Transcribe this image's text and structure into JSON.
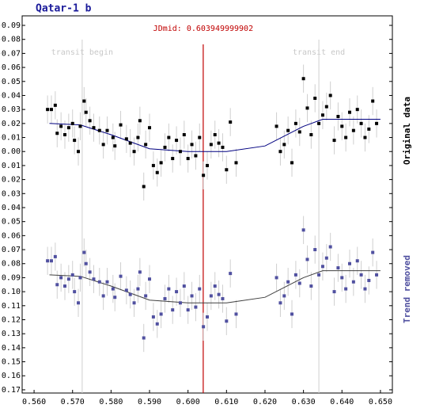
{
  "chart_data": {
    "type": "scatter",
    "title": "Qatar-1 b",
    "xlim": [
      0.5569,
      0.6531
    ],
    "ylim": [
      -0.0968,
      0.1723
    ],
    "y_inverted": true,
    "xticks": [
      {
        "value": 0.56,
        "label": "0.560"
      },
      {
        "value": 0.57,
        "label": "0.570"
      },
      {
        "value": 0.58,
        "label": "0.580"
      },
      {
        "value": 0.59,
        "label": "0.590"
      },
      {
        "value": 0.6,
        "label": "0.600"
      },
      {
        "value": 0.61,
        "label": "0.610"
      },
      {
        "value": 0.62,
        "label": "0.620"
      },
      {
        "value": 0.63,
        "label": "0.630"
      },
      {
        "value": 0.64,
        "label": "0.640"
      },
      {
        "value": 0.65,
        "label": "0.650"
      }
    ],
    "yticks": [
      -0.09,
      -0.08,
      -0.07,
      -0.06,
      -0.05,
      -0.04,
      -0.03,
      -0.02,
      -0.01,
      {
        "value": 0,
        "label": "0.00"
      },
      0.01,
      0.02,
      0.03,
      0.04,
      0.05,
      0.06,
      0.07,
      0.08,
      0.09,
      {
        "value": 0.1,
        "label": "0.10"
      },
      0.11,
      0.12,
      0.13,
      0.14,
      0.15,
      0.16,
      0.17
    ],
    "vlines": [
      {
        "value": 0.5725,
        "label": "transit begin",
        "color": "#d0d0d0"
      },
      {
        "value": 0.634,
        "label": "transit end",
        "color": "#d0d0d0"
      },
      {
        "value": 0.603949999902,
        "label": "JDmid: 0.603949999902",
        "color": "#c00000"
      }
    ],
    "x": [
      0.5635,
      0.5645,
      0.5655,
      0.566,
      0.567,
      0.568,
      0.569,
      0.57,
      0.5705,
      0.5715,
      0.572,
      0.573,
      0.5735,
      0.5745,
      0.5755,
      0.577,
      0.578,
      0.579,
      0.5805,
      0.581,
      0.5825,
      0.584,
      0.585,
      0.586,
      0.587,
      0.5875,
      0.5885,
      0.589,
      0.59,
      0.591,
      0.592,
      0.593,
      0.594,
      0.595,
      0.596,
      0.597,
      0.598,
      0.599,
      0.6,
      0.601,
      0.602,
      0.603,
      0.604,
      0.605,
      0.606,
      0.607,
      0.608,
      0.609,
      0.61,
      0.611,
      0.6125,
      0.623,
      0.624,
      0.625,
      0.626,
      0.627,
      0.628,
      0.629,
      0.63,
      0.631,
      0.632,
      0.633,
      0.634,
      0.635,
      0.636,
      0.637,
      0.638,
      0.639,
      0.64,
      0.641,
      0.642,
      0.643,
      0.644,
      0.645,
      0.646,
      0.647,
      0.648,
      0.649
    ],
    "series": [
      {
        "name": "Original data",
        "color": "#000000",
        "error": 0.01,
        "values": [
          -0.03,
          -0.03,
          -0.033,
          -0.013,
          -0.018,
          -0.012,
          -0.017,
          -0.02,
          -0.008,
          0,
          -0.018,
          -0.036,
          -0.028,
          -0.022,
          -0.017,
          -0.015,
          -0.005,
          -0.015,
          -0.01,
          -0.004,
          -0.019,
          -0.009,
          -0.006,
          0,
          -0.01,
          -0.022,
          0.025,
          -0.005,
          -0.017,
          0.01,
          0.015,
          0.008,
          -0.003,
          -0.01,
          0.005,
          -0.008,
          0,
          -0.012,
          0.005,
          -0.005,
          0.003,
          -0.01,
          0.017,
          0.01,
          -0.005,
          -0.012,
          -0.006,
          -0.003,
          0.013,
          -0.021,
          0.008,
          -0.018,
          0,
          -0.005,
          -0.015,
          0.008,
          -0.02,
          -0.014,
          -0.052,
          -0.031,
          -0.012,
          -0.038,
          -0.02,
          -0.026,
          -0.032,
          -0.04,
          -0.008,
          -0.025,
          -0.018,
          -0.01,
          -0.028,
          -0.015,
          -0.03,
          -0.02,
          -0.01,
          -0.016,
          -0.036,
          -0.02
        ]
      },
      {
        "name": "Trend removed",
        "color": "#5050a0",
        "error": 0.01,
        "values": [
          0.078,
          0.078,
          0.075,
          0.095,
          0.09,
          0.096,
          0.091,
          0.088,
          0.1,
          0.108,
          0.09,
          0.072,
          0.08,
          0.086,
          0.091,
          0.093,
          0.103,
          0.093,
          0.098,
          0.104,
          0.089,
          0.099,
          0.102,
          0.108,
          0.098,
          0.086,
          0.133,
          0.103,
          0.091,
          0.118,
          0.123,
          0.116,
          0.105,
          0.098,
          0.113,
          0.1,
          0.108,
          0.096,
          0.113,
          0.103,
          0.111,
          0.098,
          0.125,
          0.118,
          0.103,
          0.096,
          0.102,
          0.105,
          0.121,
          0.087,
          0.116,
          0.09,
          0.108,
          0.103,
          0.093,
          0.116,
          0.088,
          0.094,
          0.056,
          0.077,
          0.096,
          0.07,
          0.088,
          0.082,
          0.076,
          0.068,
          0.1,
          0.083,
          0.09,
          0.098,
          0.08,
          0.093,
          0.078,
          0.088,
          0.098,
          0.092,
          0.072,
          0.088
        ]
      }
    ],
    "models": [
      {
        "color": "#000080",
        "x": [
          0.564,
          0.572,
          0.58,
          0.59,
          0.6,
          0.61,
          0.62,
          0.63,
          0.635,
          0.65
        ],
        "values": [
          -0.02,
          -0.019,
          -0.012,
          -0.002,
          0,
          0,
          -0.004,
          -0.018,
          -0.023,
          -0.023
        ]
      },
      {
        "color": "#404040",
        "x": [
          0.564,
          0.572,
          0.58,
          0.59,
          0.6,
          0.61,
          0.62,
          0.63,
          0.635,
          0.65
        ],
        "values": [
          0.088,
          0.089,
          0.096,
          0.106,
          0.108,
          0.108,
          0.104,
          0.09,
          0.085,
          0.085
        ]
      }
    ]
  }
}
